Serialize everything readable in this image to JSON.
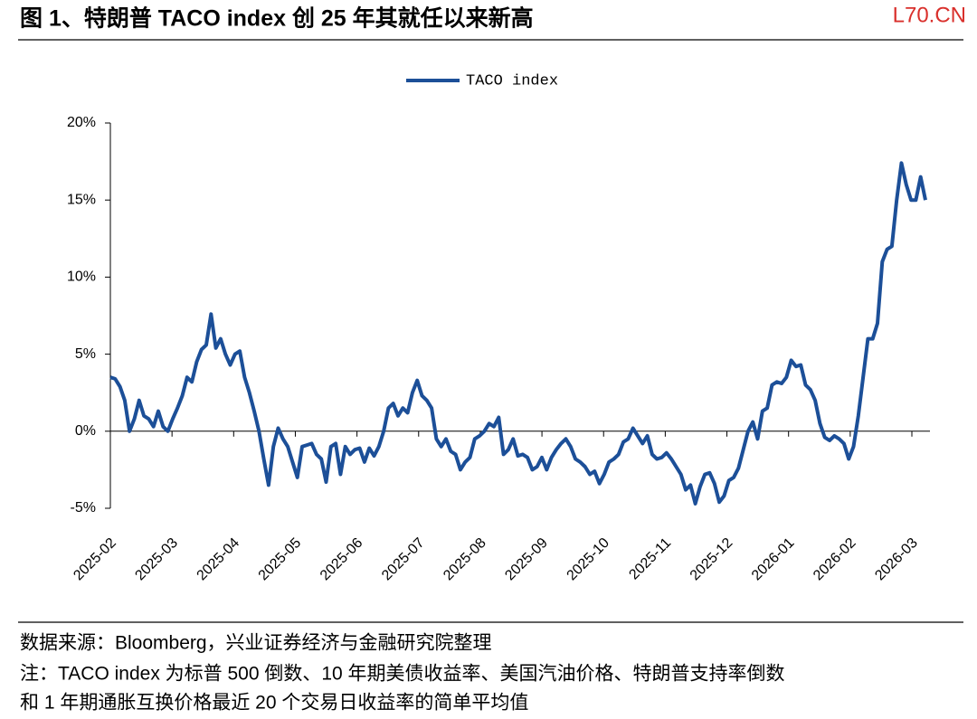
{
  "chart_data": {
    "type": "line",
    "title": "图 1、特朗普 TACO index 创 25 年其就任以来新高",
    "watermark": "L70.CN",
    "source": "数据来源：Bloomberg，兴业证券经济与金融研究院整理",
    "note": [
      "注：TACO index 为标普 500 倒数、10 年期美债收益率、美国汽油价格、特朗普支持率倒数",
      "和 1 年期通胀互换价格最近 20 个交易日收益率的简单平均值"
    ],
    "xticks": [
      "2025-02",
      "2025-03",
      "2025-04",
      "2025-05",
      "2025-06",
      "2025-07",
      "2025-08",
      "2025-09",
      "2025-10",
      "2025-11",
      "2025-12",
      "2026-01",
      "2026-02",
      "2026-03"
    ],
    "ylim": [
      -5,
      20
    ],
    "yticks": [
      {
        "value": -5,
        "label": "-5%"
      },
      {
        "value": 0,
        "label": "0%"
      },
      {
        "value": 5,
        "label": "5%"
      },
      {
        "value": 10,
        "label": "10%"
      },
      {
        "value": 15,
        "label": "15%"
      },
      {
        "value": 20,
        "label": "20%"
      }
    ],
    "legend": "top",
    "series": [
      {
        "name": "TACO index",
        "color": "#1c4f98",
        "values": [
          3.5,
          3.4,
          2.9,
          2.0,
          0.0,
          0.8,
          2.0,
          1.0,
          0.8,
          0.3,
          1.3,
          0.3,
          0.0,
          0.8,
          1.5,
          2.3,
          3.5,
          3.2,
          4.5,
          5.3,
          5.6,
          7.6,
          5.4,
          6.0,
          5.0,
          4.3,
          5.0,
          5.2,
          3.5,
          2.5,
          1.3,
          0.0,
          -1.8,
          -3.5,
          -1.0,
          0.2,
          -0.5,
          -1.0,
          -2.0,
          -3.0,
          -1.0,
          -0.9,
          -0.8,
          -1.5,
          -1.8,
          -3.3,
          -1.0,
          -0.8,
          -2.8,
          -1.0,
          -1.5,
          -1.2,
          -1.1,
          -2.0,
          -1.1,
          -1.6,
          -1.0,
          0.0,
          1.5,
          1.8,
          1.0,
          1.5,
          1.2,
          2.5,
          3.3,
          2.3,
          2.0,
          1.5,
          -0.5,
          -1.0,
          -0.5,
          -1.3,
          -1.5,
          -2.5,
          -2.0,
          -1.7,
          -0.5,
          -0.3,
          0.0,
          0.5,
          0.3,
          0.9,
          -1.5,
          -1.2,
          -0.5,
          -1.6,
          -1.5,
          -1.7,
          -2.5,
          -2.3,
          -1.7,
          -2.5,
          -1.7,
          -1.2,
          -0.8,
          -0.5,
          -1.0,
          -1.8,
          -2.0,
          -2.3,
          -2.8,
          -2.6,
          -3.4,
          -2.8,
          -2.0,
          -1.8,
          -1.5,
          -0.7,
          -0.5,
          0.2,
          -0.3,
          -0.8,
          -0.3,
          -1.5,
          -1.8,
          -1.7,
          -1.4,
          -1.8,
          -2.3,
          -2.8,
          -3.8,
          -3.5,
          -4.7,
          -3.6,
          -2.8,
          -2.7,
          -3.4,
          -4.6,
          -4.2,
          -3.2,
          -3.0,
          -2.4,
          -1.2,
          0.0,
          0.6,
          -0.5,
          1.3,
          1.5,
          3.0,
          3.2,
          3.1,
          3.5,
          4.6,
          4.2,
          4.3,
          3.0,
          2.7,
          2.0,
          0.5,
          -0.4,
          -0.6,
          -0.3,
          -0.5,
          -0.8,
          -1.8,
          -1.0,
          1.0,
          3.5,
          6.0,
          6.0,
          7.0,
          11.0,
          11.8,
          12.0,
          15.0,
          17.4,
          16.0,
          15.0,
          15.0,
          16.5,
          15.0
        ]
      }
    ]
  }
}
